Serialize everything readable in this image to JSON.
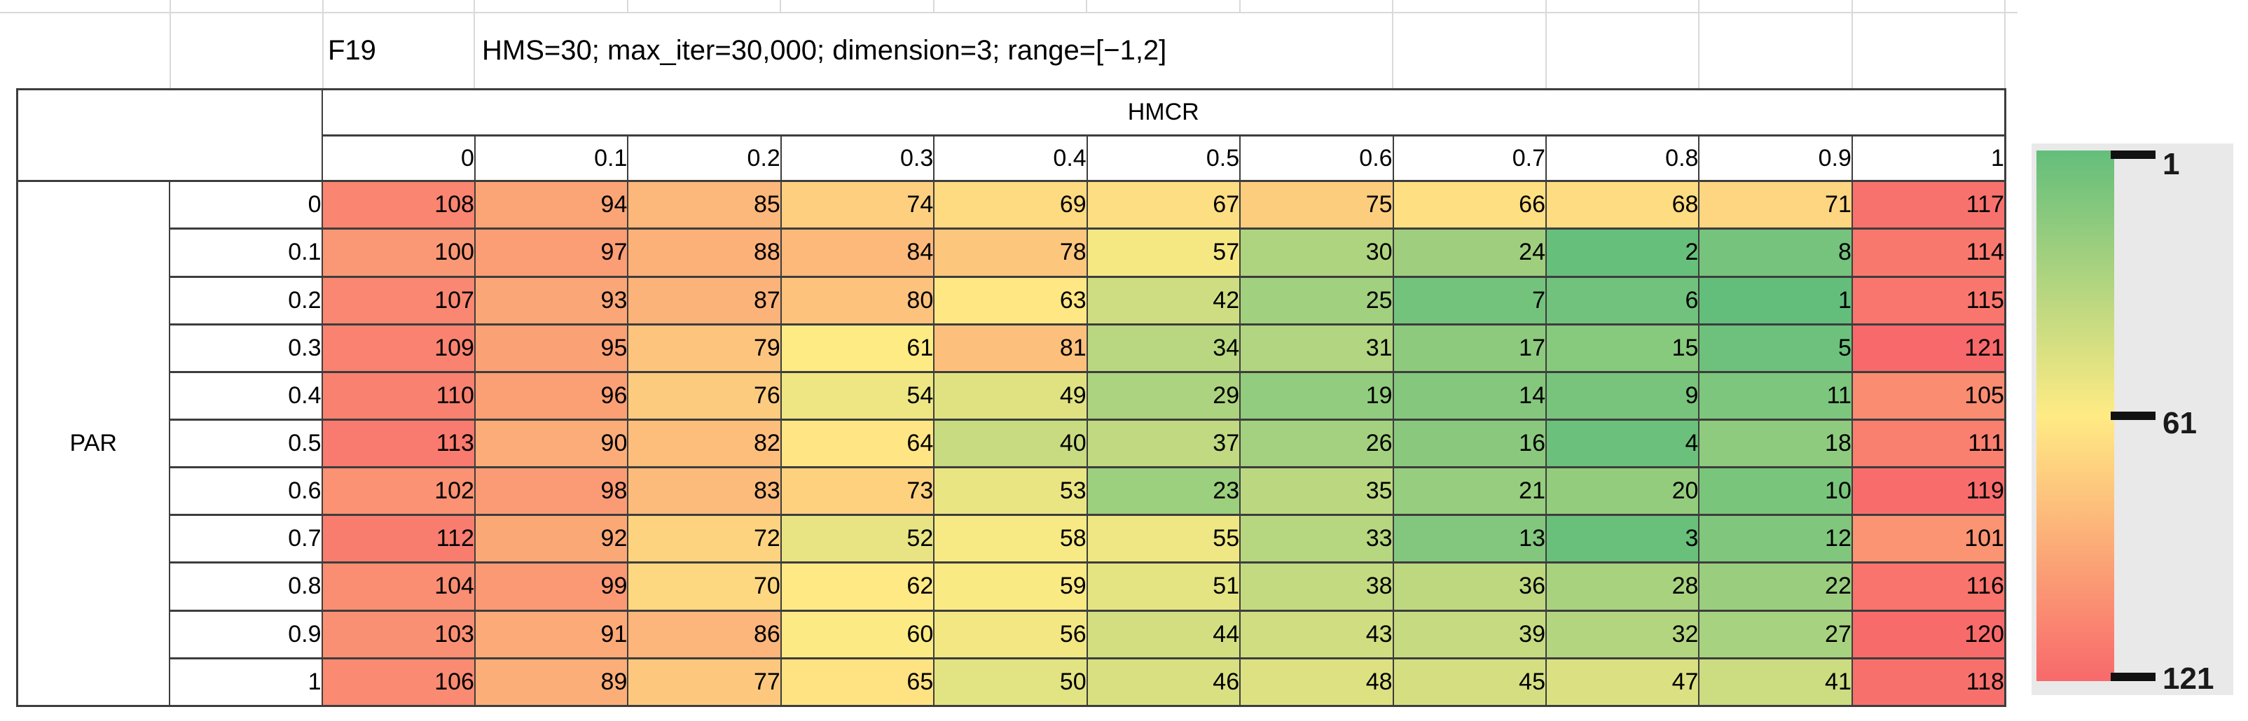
{
  "sheet": {
    "function_label": "F19",
    "settings": "HMS=30; max_iter=30,000; dimension=3; range=[−1,2]"
  },
  "chart_data": {
    "type": "heatmap",
    "x_axis_label": "HMCR",
    "y_axis_label": "PAR",
    "x_categories": [
      "0",
      "0.1",
      "0.2",
      "0.3",
      "0.4",
      "0.5",
      "0.6",
      "0.7",
      "0.8",
      "0.9",
      "1"
    ],
    "y_categories": [
      "0",
      "0.1",
      "0.2",
      "0.3",
      "0.4",
      "0.5",
      "0.6",
      "0.7",
      "0.8",
      "0.9",
      "1"
    ],
    "values": [
      [
        108,
        94,
        85,
        74,
        69,
        67,
        75,
        66,
        68,
        71,
        117
      ],
      [
        100,
        97,
        88,
        84,
        78,
        57,
        30,
        24,
        2,
        8,
        114
      ],
      [
        107,
        93,
        87,
        80,
        63,
        42,
        25,
        7,
        6,
        1,
        115
      ],
      [
        109,
        95,
        79,
        61,
        81,
        34,
        31,
        17,
        15,
        5,
        121
      ],
      [
        110,
        96,
        76,
        54,
        49,
        29,
        19,
        14,
        9,
        11,
        105
      ],
      [
        113,
        90,
        82,
        64,
        40,
        37,
        26,
        16,
        4,
        18,
        111
      ],
      [
        102,
        98,
        83,
        73,
        53,
        23,
        35,
        21,
        20,
        10,
        119
      ],
      [
        112,
        92,
        72,
        52,
        58,
        55,
        33,
        13,
        3,
        12,
        101
      ],
      [
        104,
        99,
        70,
        62,
        59,
        51,
        38,
        36,
        28,
        22,
        116
      ],
      [
        103,
        91,
        86,
        60,
        56,
        44,
        43,
        39,
        32,
        27,
        120
      ],
      [
        106,
        89,
        77,
        65,
        50,
        46,
        48,
        45,
        47,
        41,
        118
      ]
    ],
    "value_range": [
      1,
      121
    ],
    "color_scale": {
      "min_value": 1,
      "mid_value": 61,
      "max_value": 121,
      "min_color": "#63be7b",
      "mid_color": "#ffeb84",
      "max_color": "#f8696b"
    },
    "legend_ticks": [
      "1",
      "61",
      "121"
    ],
    "legend_position": "right",
    "grid": true
  }
}
